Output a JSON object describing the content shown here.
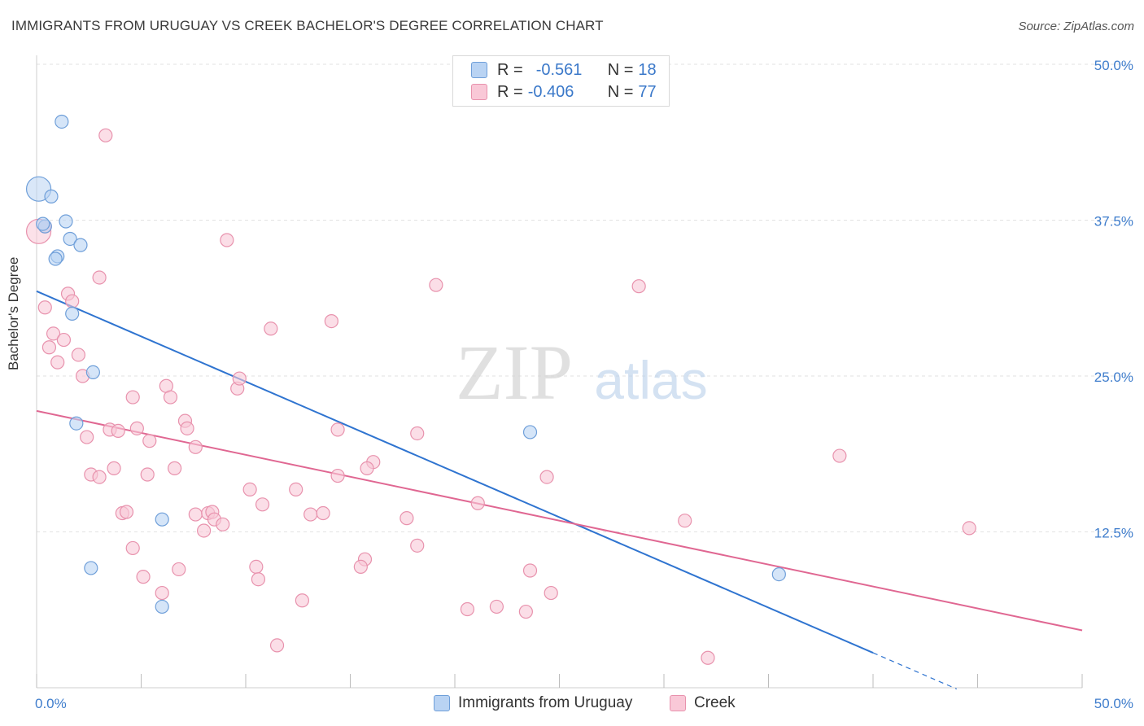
{
  "title": "IMMIGRANTS FROM URUGUAY VS CREEK BACHELOR'S DEGREE CORRELATION CHART",
  "source": "Source: ZipAtlas.com",
  "watermark": {
    "zip": "ZIP",
    "atlas": "atlas"
  },
  "legend_top": {
    "rows": [
      {
        "r_label": "R =",
        "r_value": "-0.561",
        "n_label": "N =",
        "n_value": "18"
      },
      {
        "r_label": "R =",
        "r_value": "-0.406",
        "n_label": "N =",
        "n_value": "77"
      }
    ]
  },
  "legend_bottom": {
    "items": [
      {
        "label": "Immigrants from Uruguay"
      },
      {
        "label": "Creek"
      }
    ]
  },
  "colors": {
    "uruguay_fill": "#b9d3f3",
    "uruguay_stroke": "#6f9fd9",
    "uruguay_line": "#2f74d0",
    "creek_fill": "#f9c8d7",
    "creek_stroke": "#e892ad",
    "creek_line": "#e06792",
    "axis_tick_text": "#3f7dcc",
    "grid": "#e2e2e2"
  },
  "chart_data": {
    "type": "scatter",
    "title": "IMMIGRANTS FROM URUGUAY VS CREEK BACHELOR'S DEGREE CORRELATION CHART",
    "xlabel": "",
    "ylabel": "Bachelor's Degree",
    "xlim": [
      0,
      50
    ],
    "ylim": [
      0,
      50
    ],
    "x_tick_labels": [
      "0.0%",
      "50.0%"
    ],
    "y_ticks": [
      12.5,
      25.0,
      37.5,
      50.0
    ],
    "y_tick_labels": [
      "12.5%",
      "25.0%",
      "37.5%",
      "50.0%"
    ],
    "grid": true,
    "legend_position": "top-center",
    "series": [
      {
        "name": "Immigrants from Uruguay",
        "color": "#b9d3f3",
        "R": -0.561,
        "N": 18,
        "points": [
          [
            0.1,
            40.0
          ],
          [
            0.7,
            39.4
          ],
          [
            0.4,
            37.0
          ],
          [
            1.4,
            37.4
          ],
          [
            1.6,
            36.0
          ],
          [
            2.1,
            35.5
          ],
          [
            1.0,
            34.6
          ],
          [
            0.9,
            34.4
          ],
          [
            1.7,
            30.0
          ],
          [
            1.2,
            45.4
          ],
          [
            2.7,
            25.3
          ],
          [
            1.9,
            21.2
          ],
          [
            6.0,
            13.5
          ],
          [
            2.6,
            9.6
          ],
          [
            6.0,
            6.5
          ],
          [
            23.6,
            20.5
          ],
          [
            35.5,
            9.1
          ],
          [
            0.3,
            37.2
          ]
        ],
        "trend": {
          "x": [
            0,
            40
          ],
          "y": [
            31.8,
            2.8
          ]
        },
        "trend_extension": {
          "x": [
            40,
            44
          ],
          "y": [
            2.8,
            -0.1
          ]
        }
      },
      {
        "name": "Creek",
        "color": "#f9c8d7",
        "R": -0.406,
        "N": 77,
        "points": [
          [
            0.1,
            36.6
          ],
          [
            0.4,
            37.0
          ],
          [
            3.3,
            44.3
          ],
          [
            3.0,
            32.9
          ],
          [
            1.5,
            31.6
          ],
          [
            1.7,
            31.0
          ],
          [
            0.4,
            30.5
          ],
          [
            0.8,
            28.4
          ],
          [
            1.3,
            27.9
          ],
          [
            0.6,
            27.3
          ],
          [
            2.0,
            26.7
          ],
          [
            1.0,
            26.1
          ],
          [
            2.2,
            25.0
          ],
          [
            9.1,
            35.9
          ],
          [
            19.1,
            32.3
          ],
          [
            28.8,
            32.2
          ],
          [
            14.1,
            29.4
          ],
          [
            11.2,
            28.8
          ],
          [
            6.2,
            24.2
          ],
          [
            9.6,
            24.0
          ],
          [
            9.7,
            24.8
          ],
          [
            4.6,
            23.3
          ],
          [
            6.4,
            23.3
          ],
          [
            7.1,
            21.4
          ],
          [
            7.2,
            20.8
          ],
          [
            3.5,
            20.7
          ],
          [
            3.9,
            20.6
          ],
          [
            4.8,
            20.8
          ],
          [
            2.4,
            20.1
          ],
          [
            5.4,
            19.8
          ],
          [
            7.6,
            19.3
          ],
          [
            14.4,
            20.7
          ],
          [
            18.2,
            20.4
          ],
          [
            16.1,
            18.1
          ],
          [
            15.8,
            17.6
          ],
          [
            2.6,
            17.1
          ],
          [
            3.0,
            16.9
          ],
          [
            3.7,
            17.6
          ],
          [
            5.3,
            17.1
          ],
          [
            6.6,
            17.6
          ],
          [
            14.4,
            17.0
          ],
          [
            24.4,
            16.9
          ],
          [
            10.2,
            15.9
          ],
          [
            12.4,
            15.9
          ],
          [
            10.8,
            14.7
          ],
          [
            21.1,
            14.8
          ],
          [
            4.1,
            14.0
          ],
          [
            4.3,
            14.1
          ],
          [
            7.6,
            13.9
          ],
          [
            8.2,
            14.0
          ],
          [
            8.4,
            14.1
          ],
          [
            8.5,
            13.5
          ],
          [
            8.9,
            13.1
          ],
          [
            13.1,
            13.9
          ],
          [
            13.7,
            14.0
          ],
          [
            17.7,
            13.6
          ],
          [
            31.0,
            13.4
          ],
          [
            38.4,
            18.6
          ],
          [
            44.6,
            12.8
          ],
          [
            8.0,
            12.6
          ],
          [
            4.6,
            11.2
          ],
          [
            18.2,
            11.4
          ],
          [
            15.7,
            10.3
          ],
          [
            15.5,
            9.7
          ],
          [
            10.5,
            9.7
          ],
          [
            10.6,
            8.7
          ],
          [
            6.8,
            9.5
          ],
          [
            23.6,
            9.4
          ],
          [
            5.1,
            8.9
          ],
          [
            6.0,
            7.6
          ],
          [
            24.6,
            7.6
          ],
          [
            12.7,
            7.0
          ],
          [
            20.6,
            6.3
          ],
          [
            22.0,
            6.5
          ],
          [
            23.4,
            6.1
          ],
          [
            11.5,
            3.4
          ],
          [
            32.1,
            2.4
          ]
        ],
        "trend": {
          "x": [
            0,
            50
          ],
          "y": [
            22.2,
            4.6
          ]
        }
      }
    ]
  }
}
